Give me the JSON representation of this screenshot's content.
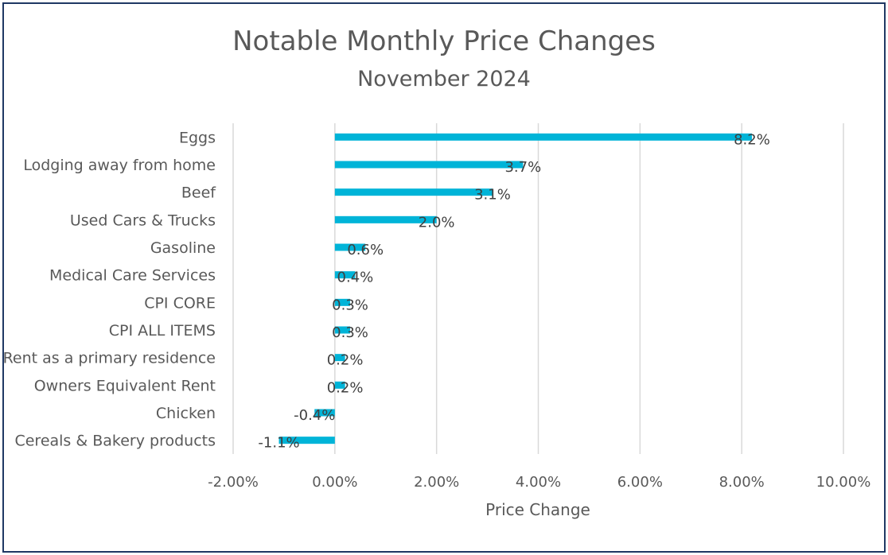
{
  "chart_data": {
    "type": "bar",
    "orientation": "horizontal",
    "title": "Notable Monthly Price Changes",
    "subtitle": "November 2024",
    "xlabel": "Price Change",
    "ylabel": "",
    "categories": [
      "Eggs",
      "Lodging away from home",
      "Beef",
      "Used Cars & Trucks",
      "Gasoline",
      "Medical Care Services",
      "CPI CORE",
      "CPI ALL ITEMS",
      "Rent as a primary residence",
      "Owners Equivalent Rent",
      "Chicken",
      "Cereals & Bakery products"
    ],
    "values": [
      8.2,
      3.7,
      3.1,
      2.0,
      0.6,
      0.4,
      0.3,
      0.3,
      0.2,
      0.2,
      -0.4,
      -1.1
    ],
    "data_labels": [
      "8.2%",
      "3.7%",
      "3.1%",
      "2.0%",
      "0.6%",
      "0.4%",
      "0.3%",
      "0.3%",
      "0.2%",
      "0.2%",
      "-0.4%",
      "-1.1%"
    ],
    "xlim": [
      -2,
      10
    ],
    "xticks": [
      -2,
      0,
      2,
      4,
      6,
      8,
      10
    ],
    "xtick_labels": [
      "-2.00%",
      "0.00%",
      "2.00%",
      "4.00%",
      "6.00%",
      "8.00%",
      "10.00%"
    ],
    "grid": true,
    "legend": "none",
    "colors": {
      "bar": "#00b4d8",
      "grid": "#d9d9d9",
      "text": "#595959",
      "label": "#404040",
      "border": "#1f3864"
    }
  }
}
